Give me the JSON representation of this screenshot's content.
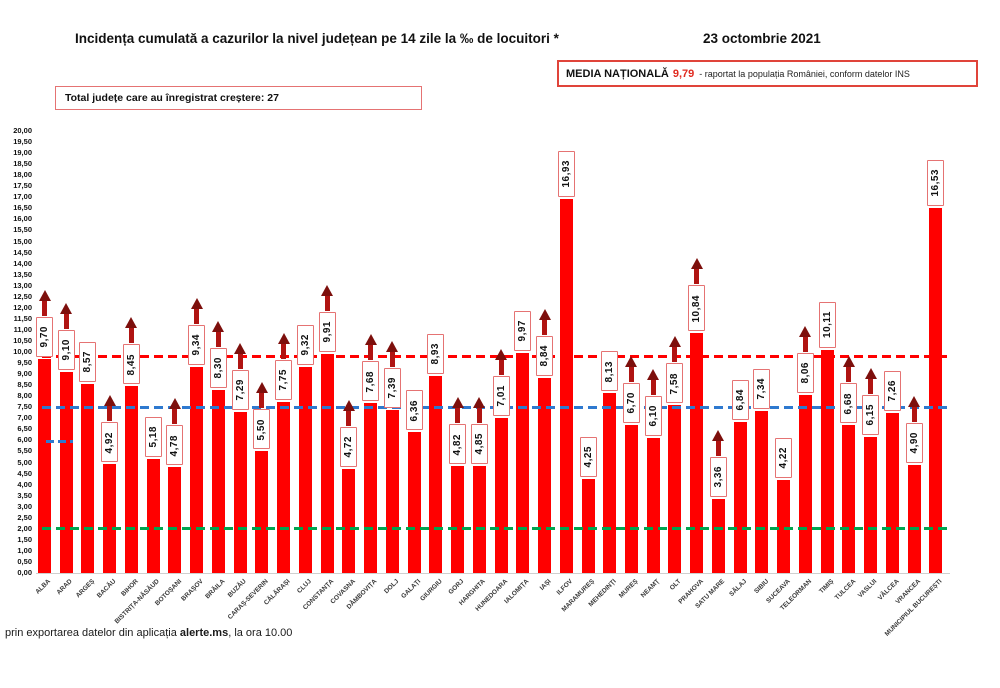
{
  "header": {
    "title": "Incidența cumulată a cazurilor la nivel județean pe 14 zile la ‰ de locuitori *",
    "date": "23 octombrie 2021",
    "national_average_label": "MEDIA NAȚIONALĂ",
    "national_average_value": "9,79",
    "national_average_note": "-  raportat la populația României, conform datelor INS",
    "total_increase_label": "Total județe care au înregistrat creștere:  27"
  },
  "footer": {
    "text_prefix": "prin exportarea datelor din aplicația ",
    "text_bold": "alerte.ms",
    "text_suffix": ", la ora 10.00"
  },
  "chart_data": {
    "type": "bar",
    "title": "Incidența cumulată a cazurilor la nivel județean pe 14 zile la ‰ de locuitori *",
    "ylim": [
      0,
      20
    ],
    "ytick_step": 0.5,
    "grid": false,
    "bar_color": "#FF0000",
    "label_box_border_color": "#E57373",
    "arrow_color": "#8E1010",
    "categories": [
      "ALBA",
      "ARAD",
      "ARGEȘ",
      "BACĂU",
      "BIHOR",
      "BISTRIȚA-NĂSĂUD",
      "BOTOȘANI",
      "BRAȘOV",
      "BRĂILA",
      "BUZĂU",
      "CARAȘ-SEVERIN",
      "CĂLĂRAȘI",
      "CLUJ",
      "CONSTANȚA",
      "COVASNA",
      "DÂMBOVIȚA",
      "DOLJ",
      "GALAȚI",
      "GIURGIU",
      "GORJ",
      "HARGHITA",
      "HUNEDOARA",
      "IALOMIȚA",
      "IAȘI",
      "ILFOV",
      "MARAMUREȘ",
      "MEHEDINȚI",
      "MUREȘ",
      "NEAMȚ",
      "OLT",
      "PRAHOVA",
      "SATU MARE",
      "SĂLAJ",
      "SIBIU",
      "SUCEAVA",
      "TELEORMAN",
      "TIMIȘ",
      "TULCEA",
      "VASLUI",
      "VÂLCEA",
      "VRANCEA",
      "MUNICIPIUL BUCUREȘTI"
    ],
    "values": [
      9.7,
      9.1,
      8.57,
      4.92,
      8.45,
      5.18,
      4.78,
      9.34,
      8.3,
      7.29,
      5.5,
      7.75,
      9.32,
      9.91,
      4.72,
      7.68,
      7.39,
      6.36,
      8.93,
      4.82,
      4.85,
      7.01,
      9.97,
      8.84,
      16.93,
      4.25,
      8.13,
      6.7,
      6.1,
      7.58,
      10.84,
      3.36,
      6.84,
      7.34,
      4.22,
      8.06,
      10.11,
      6.68,
      6.15,
      7.26,
      4.9,
      16.53
    ],
    "value_labels": [
      "9,70",
      "9,10",
      "8,57",
      "4,92",
      "8,45",
      "5,18",
      "4,78",
      "9,34",
      "8,30",
      "7,29",
      "5,50",
      "7,75",
      "9,32",
      "9,91",
      "4,72",
      "7,68",
      "7,39",
      "6,36",
      "8,93",
      "4,82",
      "4,85",
      "7,01",
      "9,97",
      "8,84",
      "16,93",
      "4,25",
      "8,13",
      "6,70",
      "6,10",
      "7,58",
      "10,84",
      "3,36",
      "6,84",
      "7,34",
      "4,22",
      "8,06",
      "10,11",
      "6,68",
      "6,15",
      "7,26",
      "4,90",
      "16,53"
    ],
    "increase_flags": [
      true,
      true,
      false,
      true,
      true,
      false,
      true,
      true,
      true,
      true,
      true,
      true,
      false,
      true,
      true,
      true,
      true,
      false,
      false,
      true,
      true,
      true,
      false,
      true,
      false,
      false,
      false,
      true,
      true,
      true,
      true,
      true,
      false,
      false,
      false,
      true,
      false,
      true,
      true,
      false,
      true,
      false
    ],
    "total_counties_increasing": 27,
    "national_average": 9.79,
    "reference_lines": [
      {
        "name": "media-nationala-line",
        "value": 9.79,
        "color": "#FF0000"
      },
      {
        "name": "reference-blue-line",
        "value": 7.5,
        "color": "#2E79CF"
      },
      {
        "name": "reference-green-line",
        "value": 2.0,
        "color": "#00A550"
      }
    ],
    "stray_mark": {
      "name": "stray-blue-dash",
      "value": 5.95,
      "color": "#2E79CF"
    },
    "legend": null,
    "xlabel": "",
    "ylabel": ""
  }
}
